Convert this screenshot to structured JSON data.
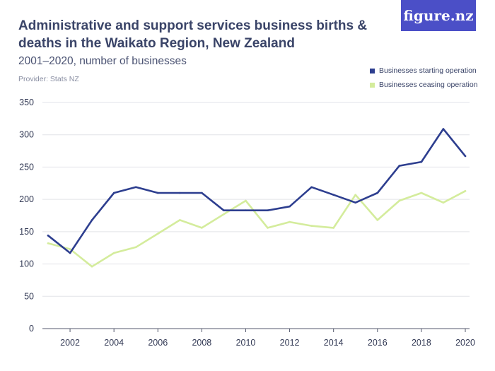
{
  "header": {
    "title": "Administrative and support services business births & deaths in the Waikato Region, New Zealand",
    "subtitle": "2001–2020, number of businesses",
    "provider": "Provider: Stats NZ",
    "logo": "figure.nz"
  },
  "chart_data": {
    "type": "line",
    "title": "Administrative and support services business births & deaths in the Waikato Region, New Zealand",
    "subtitle": "2001–2020, number of businesses",
    "xlabel": "",
    "ylabel": "",
    "x": [
      2001,
      2002,
      2003,
      2004,
      2005,
      2006,
      2007,
      2008,
      2009,
      2010,
      2011,
      2012,
      2013,
      2014,
      2015,
      2016,
      2017,
      2018,
      2019,
      2020
    ],
    "xticks": [
      "2002",
      "2004",
      "2006",
      "2008",
      "2010",
      "2012",
      "2014",
      "2016",
      "2018",
      "2020"
    ],
    "yticks": [
      "0",
      "50",
      "100",
      "150",
      "200",
      "250",
      "300",
      "350"
    ],
    "ylim": [
      0,
      350
    ],
    "xlim": [
      2001,
      2020
    ],
    "grid": true,
    "legend_position": "top-right",
    "series": [
      {
        "name": "Businesses starting operation",
        "color": "#2d3e8f",
        "values": [
          144,
          117,
          168,
          210,
          219,
          210,
          210,
          210,
          183,
          183,
          183,
          189,
          219,
          207,
          195,
          210,
          252,
          258,
          309,
          267
        ]
      },
      {
        "name": "Businesses ceasing operation",
        "color": "#d4ec9c",
        "values": [
          132,
          123,
          96,
          117,
          126,
          147,
          168,
          156,
          177,
          198,
          156,
          165,
          159,
          156,
          207,
          168,
          198,
          210,
          195,
          213
        ]
      }
    ]
  }
}
